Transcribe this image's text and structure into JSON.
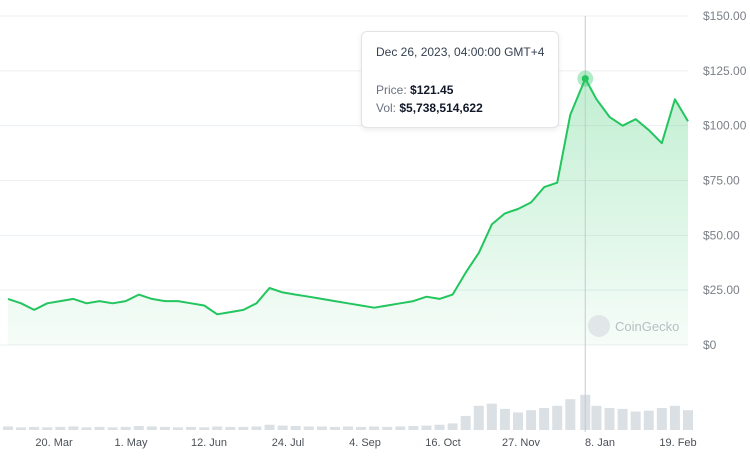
{
  "chart_data": {
    "type": "area",
    "series": [
      {
        "x": [
          "2023-02-20",
          "2023-02-27",
          "2023-03-06",
          "2023-03-13",
          "2023-03-20",
          "2023-03-27",
          "2023-04-03",
          "2023-04-10",
          "2023-04-17",
          "2023-04-24",
          "2023-05-01",
          "2023-05-08",
          "2023-05-15",
          "2023-05-22",
          "2023-05-29",
          "2023-06-05",
          "2023-06-12",
          "2023-06-19",
          "2023-06-26",
          "2023-07-03",
          "2023-07-10",
          "2023-07-17",
          "2023-07-24",
          "2023-07-31",
          "2023-08-07",
          "2023-08-14",
          "2023-08-21",
          "2023-08-28",
          "2023-09-04",
          "2023-09-11",
          "2023-09-18",
          "2023-09-25",
          "2023-10-02",
          "2023-10-09",
          "2023-10-16",
          "2023-10-23",
          "2023-10-30",
          "2023-11-06",
          "2023-11-13",
          "2023-11-20",
          "2023-11-27",
          "2023-12-04",
          "2023-12-11",
          "2023-12-18",
          "2023-12-26",
          "2024-01-01",
          "2024-01-08",
          "2024-01-15",
          "2024-01-22",
          "2024-01-29",
          "2024-02-05",
          "2024-02-12",
          "2024-02-19"
        ],
        "values": [
          21,
          19,
          16,
          19,
          20,
          21,
          19,
          20,
          19,
          20,
          23,
          21,
          20,
          20,
          19,
          18,
          14,
          15,
          16,
          19,
          26,
          24,
          23,
          22,
          21,
          20,
          19,
          18,
          17,
          18,
          19,
          20,
          22,
          21,
          23,
          33,
          42,
          55,
          60,
          62,
          65,
          72,
          74,
          105,
          121.45,
          112,
          104,
          100,
          103,
          98,
          92,
          112,
          102
        ],
        "volume_relative": [
          0.08,
          0.06,
          0.07,
          0.06,
          0.07,
          0.08,
          0.06,
          0.07,
          0.06,
          0.07,
          0.09,
          0.08,
          0.07,
          0.06,
          0.07,
          0.06,
          0.08,
          0.07,
          0.07,
          0.08,
          0.12,
          0.1,
          0.09,
          0.08,
          0.08,
          0.07,
          0.08,
          0.07,
          0.08,
          0.07,
          0.08,
          0.09,
          0.1,
          0.12,
          0.15,
          0.32,
          0.55,
          0.6,
          0.48,
          0.4,
          0.45,
          0.5,
          0.55,
          0.7,
          0.8,
          0.55,
          0.5,
          0.48,
          0.42,
          0.44,
          0.5,
          0.55,
          0.45
        ]
      }
    ],
    "ylim": [
      0,
      150
    ],
    "y_ticks": [
      "$150.00",
      "$125.00",
      "$100.00",
      "$75.00",
      "$50.00",
      "$25.00",
      "$0"
    ],
    "x_ticks": [
      "20. Mar",
      "1. May",
      "12. Jun",
      "24. Jul",
      "4. Sep",
      "16. Oct",
      "27. Nov",
      "8. Jan",
      "19. Feb"
    ],
    "grid": true,
    "line_color": "#22c55e",
    "area_color": "#22c55e",
    "crosshair_color": "#c5c9ce",
    "tooltip": {
      "date": "Dec 26, 2023, 04:00:00 GMT+4",
      "price_label": "Price:",
      "price_value": "$121.45",
      "vol_label": "Vol:",
      "vol_value": "$5,738,514,622"
    },
    "watermark": "CoinGecko"
  }
}
